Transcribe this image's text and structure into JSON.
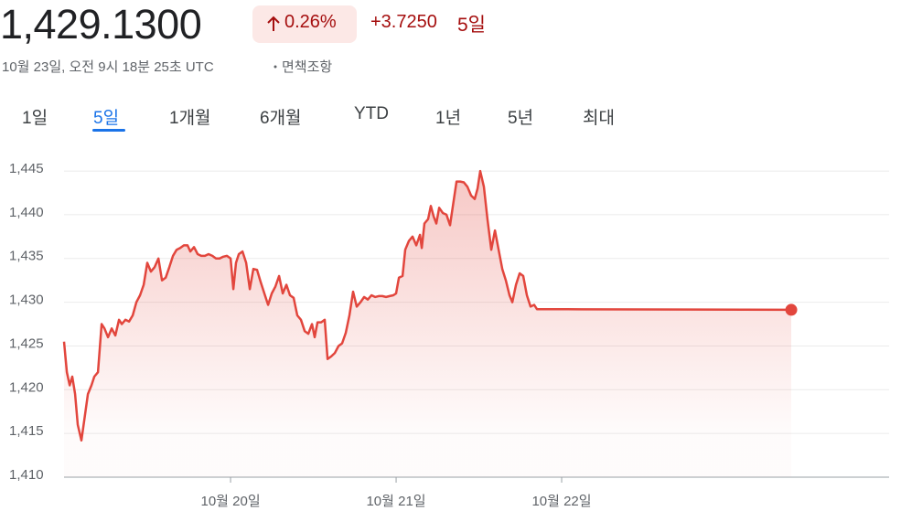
{
  "header": {
    "price": "1,429.1300",
    "change_percent": "0.26%",
    "change": "+3.7250",
    "period": "5일",
    "timestamp": "10월 23일, 오전 9시 18분 25초 UTC",
    "disclaimer": "면책조항"
  },
  "tabs": [
    "1일",
    "5일",
    "1개월",
    "6개월",
    "YTD",
    "1년",
    "5년",
    "최대"
  ],
  "selected_tab": 1,
  "chart_data": {
    "type": "line",
    "color": "#e2463d",
    "x": [
      18.994,
      19.011,
      19.028,
      19.044,
      19.061,
      19.077,
      19.099,
      19.116,
      19.138,
      19.16,
      19.177,
      19.199,
      19.221,
      19.238,
      19.26,
      19.282,
      19.304,
      19.326,
      19.343,
      19.365,
      19.387,
      19.409,
      19.431,
      19.453,
      19.475,
      19.497,
      19.519,
      19.541,
      19.564,
      19.586,
      19.608,
      19.63,
      19.652,
      19.674,
      19.696,
      19.718,
      19.74,
      19.757,
      19.779,
      19.801,
      19.823,
      19.845,
      19.867,
      19.89,
      19.912,
      19.934,
      19.956,
      19.978,
      20.0,
      20.017,
      20.033,
      20.05,
      20.072,
      20.094,
      20.116,
      20.138,
      20.16,
      20.182,
      20.204,
      20.227,
      20.249,
      20.271,
      20.293,
      20.315,
      20.337,
      20.359,
      20.381,
      20.403,
      20.425,
      20.448,
      20.47,
      20.492,
      20.508,
      20.525,
      20.547,
      20.569,
      20.586,
      20.608,
      20.63,
      20.652,
      20.674,
      20.696,
      20.718,
      20.74,
      20.762,
      20.785,
      20.807,
      20.829,
      20.851,
      20.873,
      20.895,
      20.917,
      20.939,
      20.961,
      20.983,
      21.0,
      21.017,
      21.039,
      21.055,
      21.077,
      21.099,
      21.122,
      21.144,
      21.155,
      21.171,
      21.193,
      21.21,
      21.227,
      21.243,
      21.26,
      21.282,
      21.304,
      21.326,
      21.343,
      21.365,
      21.387,
      21.409,
      21.431,
      21.453,
      21.475,
      21.492,
      21.508,
      21.53,
      21.552,
      21.575,
      21.597,
      21.619,
      21.641,
      21.663,
      21.685,
      21.702,
      21.724,
      21.746,
      21.768,
      21.79,
      21.812,
      21.834,
      21.851,
      22.033,
      23.387
    ],
    "values": [
      1425.5,
      1422,
      1420.5,
      1421.5,
      1419.5,
      1416,
      1414.2,
      1416.5,
      1419.5,
      1420.5,
      1421.5,
      1422,
      1427.5,
      1427,
      1426,
      1427,
      1426.2,
      1428,
      1427.5,
      1428,
      1427.8,
      1428.5,
      1430,
      1430.8,
      1432,
      1434.5,
      1433.5,
      1434,
      1435,
      1432.5,
      1432.8,
      1434,
      1435.3,
      1436,
      1436.2,
      1436.5,
      1436.5,
      1435.8,
      1436.3,
      1435.5,
      1435.3,
      1435.3,
      1435.5,
      1435.3,
      1435,
      1435,
      1435.2,
      1435.3,
      1435,
      1431.5,
      1434.5,
      1435.5,
      1435.8,
      1434.5,
      1431.5,
      1433.8,
      1433.7,
      1432.3,
      1431,
      1429.7,
      1431,
      1431.8,
      1433,
      1431,
      1432,
      1430.8,
      1430.5,
      1428.5,
      1428,
      1426.7,
      1426.4,
      1427.5,
      1426,
      1427.7,
      1427.7,
      1428,
      1423.5,
      1423.8,
      1424.2,
      1425,
      1425.3,
      1426.5,
      1428.5,
      1431.2,
      1429.5,
      1430,
      1430.6,
      1430.3,
      1430.8,
      1430.6,
      1430.7,
      1430.7,
      1430.6,
      1430.7,
      1430.8,
      1431,
      1432.8,
      1433,
      1436,
      1437,
      1437.5,
      1436.5,
      1437.7,
      1436.2,
      1439,
      1439.5,
      1441,
      1439.8,
      1439,
      1440.8,
      1440.2,
      1440,
      1438.8,
      1441,
      1443.8,
      1443.8,
      1443.7,
      1443.2,
      1442.2,
      1441.8,
      1443,
      1445,
      1443.2,
      1439.5,
      1436,
      1438.2,
      1436,
      1433.8,
      1432.5,
      1430.8,
      1430,
      1432,
      1433.3,
      1433,
      1430.8,
      1429.5,
      1429.7,
      1429.2,
      1429.2,
      1429.13
    ],
    "xlim": [
      18.994,
      23.978
    ],
    "xticks": [
      {
        "value": 20,
        "label": "10월 20일"
      },
      {
        "value": 21,
        "label": "10월 21일"
      },
      {
        "value": 22,
        "label": "10월 22일"
      }
    ],
    "ylim": [
      1410,
      1446
    ],
    "yticks": [
      {
        "value": 1410,
        "label": "1,410"
      },
      {
        "value": 1415,
        "label": "1,415"
      },
      {
        "value": 1420,
        "label": "1,420"
      },
      {
        "value": 1425,
        "label": "1,425"
      },
      {
        "value": 1430,
        "label": "1,430"
      },
      {
        "value": 1435,
        "label": "1,435"
      },
      {
        "value": 1440,
        "label": "1,440"
      },
      {
        "value": 1445,
        "label": "1,445"
      }
    ],
    "grid": true
  }
}
